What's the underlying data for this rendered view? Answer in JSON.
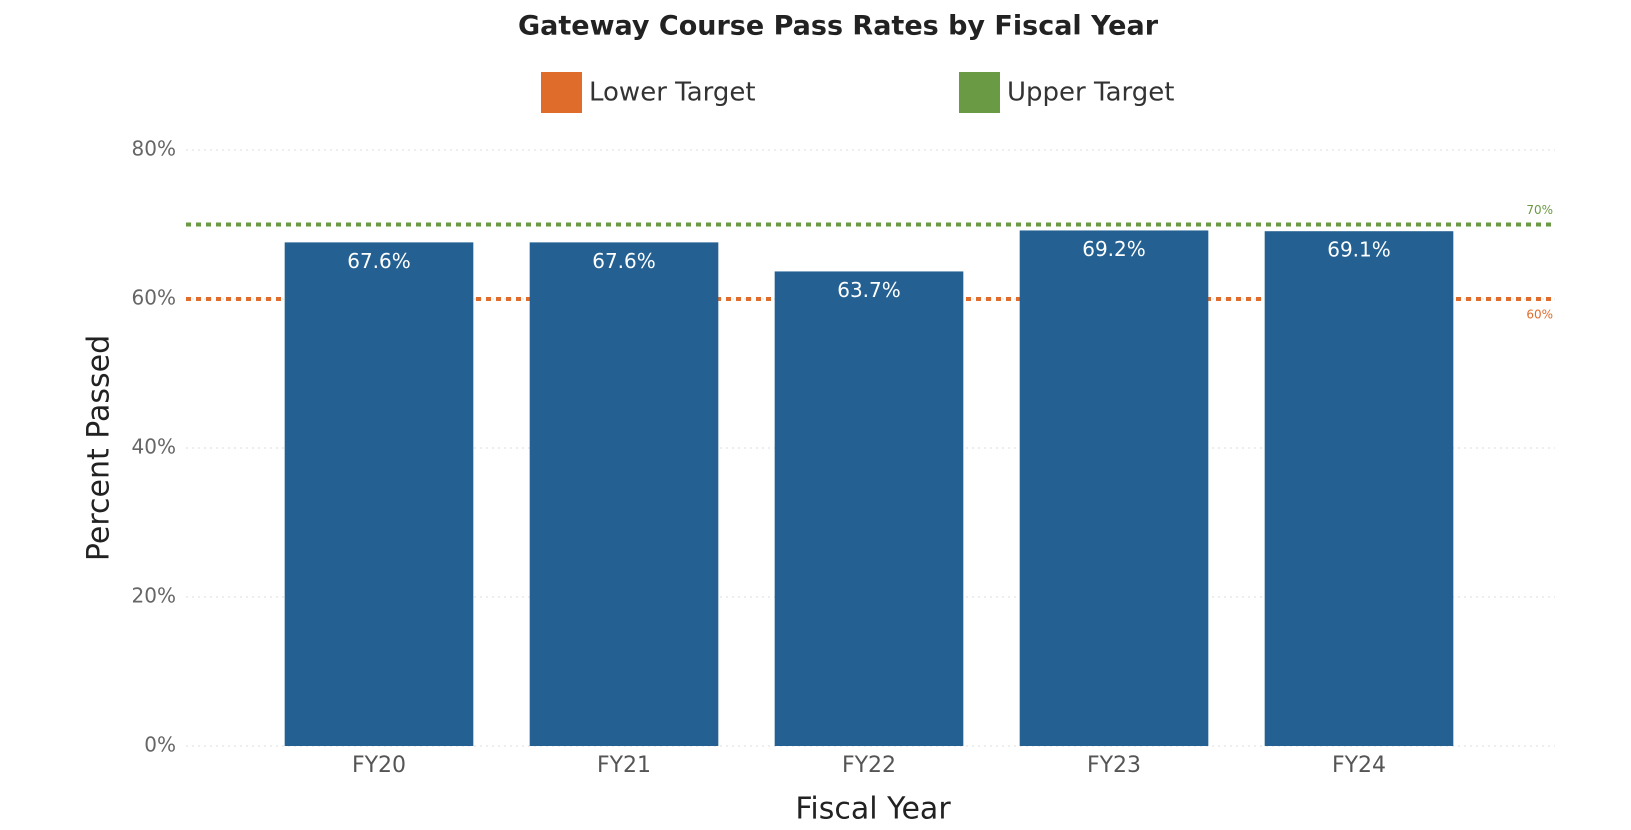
{
  "chart_data": {
    "type": "bar",
    "title": "Gateway Course Pass Rates by Fiscal Year",
    "x_label": "Fiscal Year",
    "y_label": "Percent Passed",
    "categories": [
      "FY20",
      "FY21",
      "FY22",
      "FY23",
      "FY24"
    ],
    "values": [
      67.6,
      67.6,
      63.7,
      69.2,
      69.1
    ],
    "value_labels": [
      "67.6%",
      "67.6%",
      "63.7%",
      "69.2%",
      "69.1%"
    ],
    "color": "#246192",
    "ylim": [
      0,
      80
    ],
    "yticks": [
      {
        "value": 0,
        "label": "0%"
      },
      {
        "value": 20,
        "label": "20%"
      },
      {
        "value": 40,
        "label": "40%"
      },
      {
        "value": 60,
        "label": "60%"
      },
      {
        "value": 80,
        "label": "80%"
      }
    ],
    "grid": true,
    "reference_lines": [
      {
        "name": "Lower Target",
        "value": 60,
        "label": "60%",
        "color": "#e06c2c"
      },
      {
        "name": "Upper Target",
        "value": 70,
        "label": "70%",
        "color": "#6b9a45"
      }
    ]
  }
}
